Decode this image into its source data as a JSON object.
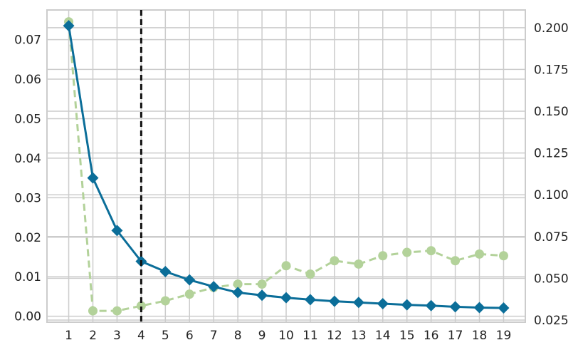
{
  "chart_data": {
    "type": "line",
    "title": "",
    "xlabel": "",
    "ylabel": "",
    "x": [
      1,
      2,
      3,
      4,
      5,
      6,
      7,
      8,
      9,
      10,
      11,
      12,
      13,
      14,
      15,
      16,
      17,
      18,
      19
    ],
    "x_ticks": [
      "1",
      "2",
      "3",
      "4",
      "5",
      "6",
      "7",
      "8",
      "9",
      "10",
      "11",
      "12",
      "13",
      "14",
      "15",
      "16",
      "17",
      "18",
      "19"
    ],
    "xlim": [
      0.1,
      19.9
    ],
    "y_left": {
      "lim": [
        -0.0015,
        0.0775
      ],
      "ticks": [
        "0.00",
        "0.01",
        "0.02",
        "0.03",
        "0.04",
        "0.05",
        "0.06",
        "0.07"
      ]
    },
    "y_right": {
      "lim": [
        0.0237,
        0.2106
      ],
      "ticks": [
        "0.025",
        "0.050",
        "0.075",
        "0.100",
        "0.125",
        "0.150",
        "0.175",
        "0.200"
      ]
    },
    "series": [
      {
        "axis": "left",
        "color": "#0b6e99",
        "style": "solid",
        "marker": "diamond",
        "values": [
          0.0735,
          0.035,
          0.0217,
          0.0139,
          0.0113,
          0.0092,
          0.0075,
          0.006,
          0.0053,
          0.0047,
          0.0042,
          0.0038,
          0.0035,
          0.0032,
          0.0029,
          0.0027,
          0.0024,
          0.0022,
          0.0021
        ]
      },
      {
        "axis": "right",
        "color": "#b3d29a",
        "style": "dashed",
        "marker": "circle",
        "values": [
          0.2035,
          0.0305,
          0.0305,
          0.0335,
          0.0365,
          0.0405,
          0.0445,
          0.0465,
          0.0465,
          0.0575,
          0.0525,
          0.0605,
          0.0585,
          0.0635,
          0.0655,
          0.0665,
          0.0605,
          0.0645,
          0.0635
        ]
      }
    ],
    "vline": {
      "x": 4,
      "color": "#111111",
      "style": "dashed"
    },
    "grid": true
  },
  "style": {
    "grid_color": "#cccccc",
    "spine_color": "#cccccc"
  }
}
